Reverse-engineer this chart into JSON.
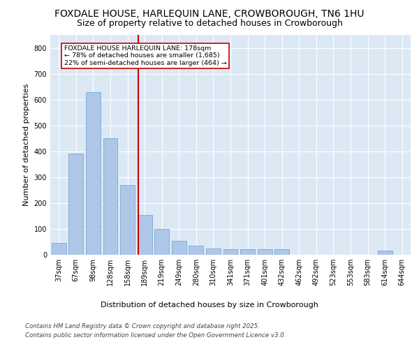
{
  "title_line1": "FOXDALE HOUSE, HARLEQUIN LANE, CROWBOROUGH, TN6 1HU",
  "title_line2": "Size of property relative to detached houses in Crowborough",
  "xlabel": "Distribution of detached houses by size in Crowborough",
  "ylabel": "Number of detached properties",
  "categories": [
    "37sqm",
    "67sqm",
    "98sqm",
    "128sqm",
    "158sqm",
    "189sqm",
    "219sqm",
    "249sqm",
    "280sqm",
    "310sqm",
    "341sqm",
    "371sqm",
    "401sqm",
    "432sqm",
    "462sqm",
    "492sqm",
    "523sqm",
    "553sqm",
    "583sqm",
    "614sqm",
    "644sqm"
  ],
  "values": [
    45,
    390,
    630,
    450,
    270,
    155,
    100,
    55,
    35,
    25,
    22,
    22,
    22,
    22,
    0,
    0,
    0,
    0,
    0,
    15,
    0
  ],
  "bar_color": "#aec6e8",
  "bar_edge_color": "#6a9fd0",
  "vline_color": "#cc0000",
  "annotation_text": "FOXDALE HOUSE HARLEQUIN LANE: 178sqm\n← 78% of detached houses are smaller (1,685)\n22% of semi-detached houses are larger (464) →",
  "annotation_box_color": "#ffffff",
  "annotation_box_edge": "#cc0000",
  "ylim": [
    0,
    850
  ],
  "yticks": [
    0,
    100,
    200,
    300,
    400,
    500,
    600,
    700,
    800
  ],
  "plot_background": "#dce9f5",
  "footer_line1": "Contains HM Land Registry data © Crown copyright and database right 2025.",
  "footer_line2": "Contains public sector information licensed under the Open Government Licence v3.0.",
  "title_fontsize": 10,
  "subtitle_fontsize": 9,
  "axis_label_fontsize": 8,
  "tick_fontsize": 7
}
